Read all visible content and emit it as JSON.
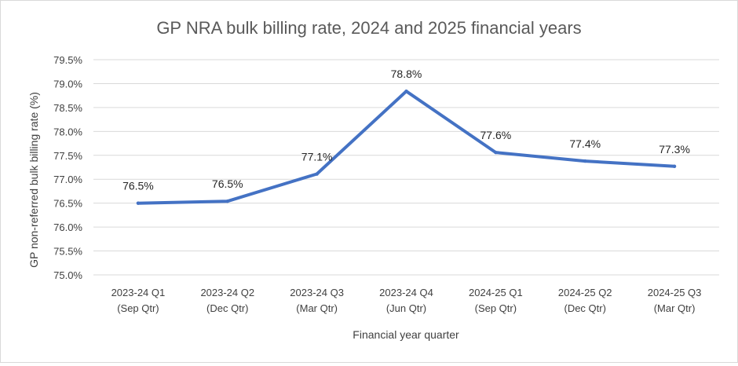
{
  "chart_data": {
    "type": "line",
    "title": "GP NRA bulk billing rate, 2024 and 2025 financial years",
    "xlabel": "Financial year quarter",
    "ylabel": "GP non-referred bulk billing rate (%)",
    "categories": [
      [
        "2023-24 Q1",
        "(Sep Qtr)"
      ],
      [
        "2023-24 Q2",
        "(Dec Qtr)"
      ],
      [
        "2023-24 Q3",
        "(Mar Qtr)"
      ],
      [
        "2023-24 Q4",
        "(Jun Qtr)"
      ],
      [
        "2024-25 Q1",
        "(Sep Qtr)"
      ],
      [
        "2024-25 Q2",
        "(Dec Qtr)"
      ],
      [
        "2024-25 Q3",
        "(Mar Qtr)"
      ]
    ],
    "series": [
      {
        "values": [
          76.5,
          76.54,
          77.11,
          78.84,
          77.56,
          77.38,
          77.27
        ],
        "labels": [
          "76.5%",
          "76.5%",
          "77.1%",
          "78.8%",
          "77.6%",
          "77.4%",
          "77.3%"
        ],
        "color": "#4472c4"
      }
    ],
    "ylim": [
      75.0,
      79.5
    ],
    "yticks": [
      "75.0%",
      "75.5%",
      "76.0%",
      "76.5%",
      "77.0%",
      "77.5%",
      "78.0%",
      "78.5%",
      "79.0%",
      "79.5%"
    ],
    "ytick_values": [
      75.0,
      75.5,
      76.0,
      76.5,
      77.0,
      77.5,
      78.0,
      78.5,
      79.0,
      79.5
    ],
    "grid": true,
    "gridline_color": "#d9d9d9"
  }
}
